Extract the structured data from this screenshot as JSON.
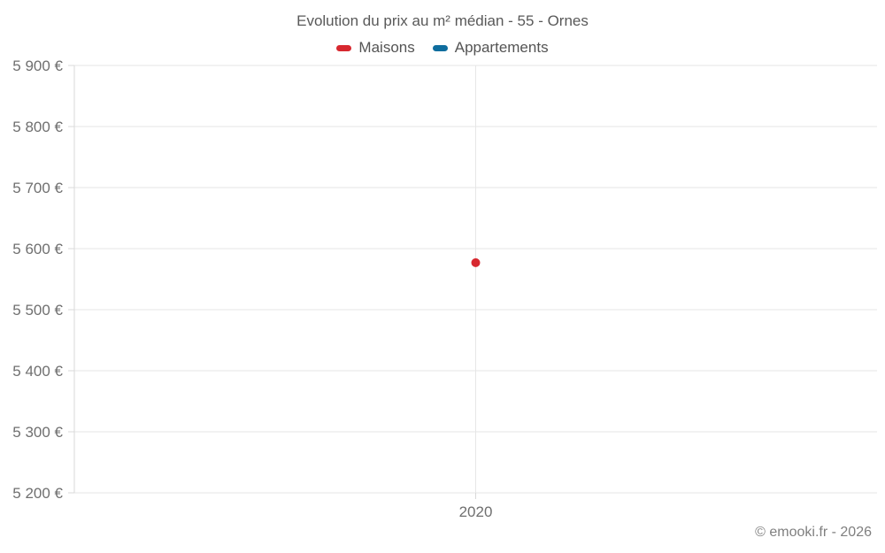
{
  "header": {
    "title": "Evolution du prix au m² médian - 55 - Ornes"
  },
  "legend": {
    "items": [
      {
        "label": "Maisons",
        "color": "#d7282f"
      },
      {
        "label": "Appartements",
        "color": "#0e6d9e"
      }
    ]
  },
  "footer": {
    "copyright": "© emooki.fr - 2026"
  },
  "chart_data": {
    "type": "scatter",
    "title": "Evolution du prix au m² médian - 55 - Ornes",
    "x_categories": [
      "2020"
    ],
    "series": [
      {
        "name": "Maisons",
        "color": "#d7282f",
        "points": [
          {
            "x": "2020",
            "y": 5577
          }
        ]
      },
      {
        "name": "Appartements",
        "color": "#0e6d9e",
        "points": []
      }
    ],
    "ylim": [
      5200,
      5900
    ],
    "ytick_step": 100,
    "ytick_labels": [
      "5 200 €",
      "5 300 €",
      "5 400 €",
      "5 500 €",
      "5 600 €",
      "5 700 €",
      "5 800 €",
      "5 900 €"
    ],
    "ylabel": "",
    "xlabel": "",
    "grid": true,
    "legend_position": "top",
    "grid_color": "#e6e6e6",
    "axis_color": "#d9d9d9",
    "point_radius": 5
  }
}
